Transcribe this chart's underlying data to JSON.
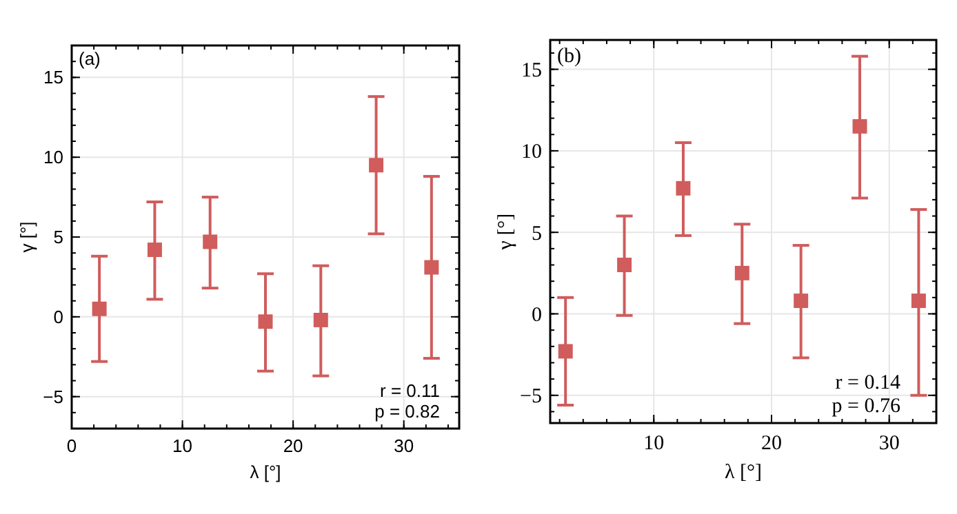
{
  "chart_data": [
    {
      "type": "scatter",
      "xlabel": "λ [°]",
      "ylabel": "γ [°]",
      "x": [
        2.5,
        7.5,
        12.5,
        17.5,
        22.5,
        27.5,
        32.5
      ],
      "xlim": [
        0,
        35
      ],
      "xticks": [
        0,
        10,
        20,
        30
      ],
      "ylim": [
        -7,
        17
      ],
      "yticks": [
        -5,
        0,
        5,
        10,
        15
      ],
      "grid": true,
      "marker": "square",
      "series": [
        {
          "color": "#d05c5c",
          "values": [
            0.5,
            4.2,
            4.7,
            -0.3,
            -0.2,
            9.5,
            3.1
          ],
          "errors": [
            [
              -2.8,
              3.8
            ],
            [
              1.1,
              7.2
            ],
            [
              1.8,
              7.5
            ],
            [
              -3.4,
              2.7
            ],
            [
              -3.7,
              3.2
            ],
            [
              5.2,
              13.8
            ],
            [
              -2.6,
              8.8
            ]
          ]
        }
      ],
      "annotations": [
        "(a)",
        "r = 0.11",
        "p = 0.82"
      ]
    },
    {
      "type": "scatter",
      "xlabel": "λ [°]",
      "ylabel": "γ [°]",
      "x": [
        2.5,
        7.5,
        12.5,
        17.5,
        22.5,
        27.5,
        32.5
      ],
      "xlim": [
        1.2,
        34
      ],
      "xticks": [
        10,
        20,
        30
      ],
      "ylim": [
        -6.7,
        16.8
      ],
      "yticks": [
        -5,
        0,
        5,
        10,
        15
      ],
      "grid": true,
      "marker": "square",
      "series": [
        {
          "color": "#d05c5c",
          "values": [
            -2.3,
            3.0,
            7.7,
            2.5,
            0.8,
            11.5,
            0.8
          ],
          "errors": [
            [
              -5.6,
              1.0
            ],
            [
              -0.1,
              6.0
            ],
            [
              4.8,
              10.5
            ],
            [
              -0.6,
              5.5
            ],
            [
              -2.7,
              4.2
            ],
            [
              7.1,
              15.8
            ],
            [
              -5.0,
              6.4
            ]
          ]
        }
      ],
      "annotations": [
        "(b)",
        "r = 0.14",
        "p = 0.76"
      ]
    }
  ]
}
